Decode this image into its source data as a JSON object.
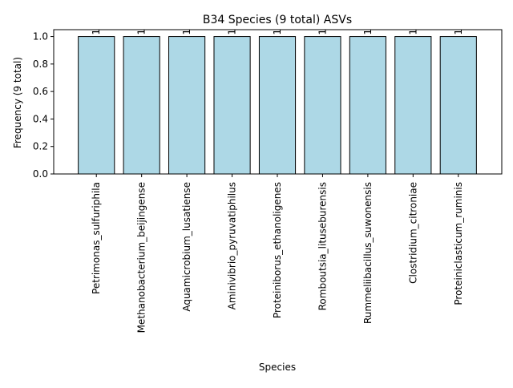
{
  "chart_data": {
    "type": "bar",
    "title": "B34 Species (9 total) ASVs",
    "xlabel": "Species",
    "ylabel": "Frequency (9 total)",
    "categories": [
      "Petrimonas_sulfuriphila",
      "Methanobacterium_beijingense",
      "Aquamicrobium_lusatiense",
      "Aminivibrio_pyruvatiphilus",
      "Proteiniborus_ethanoligenes",
      "Romboutsia_lituseburensis",
      "Rummeliibacillus_suwonensis",
      "Clostridium_citroniae",
      "Proteiniclasticum_ruminis"
    ],
    "values": [
      1,
      1,
      1,
      1,
      1,
      1,
      1,
      1,
      1
    ],
    "data_labels": [
      "1",
      "1",
      "1",
      "1",
      "1",
      "1",
      "1",
      "1",
      "1"
    ],
    "ylim": [
      0,
      1.05
    ],
    "yticks": [
      "0.0",
      "0.2",
      "0.4",
      "0.6",
      "0.8",
      "1.0"
    ],
    "grid": false,
    "legend": "none",
    "colors": {
      "bar_fill": "#add8e6",
      "bar_edge": "#000000",
      "axes": "#000000"
    }
  }
}
